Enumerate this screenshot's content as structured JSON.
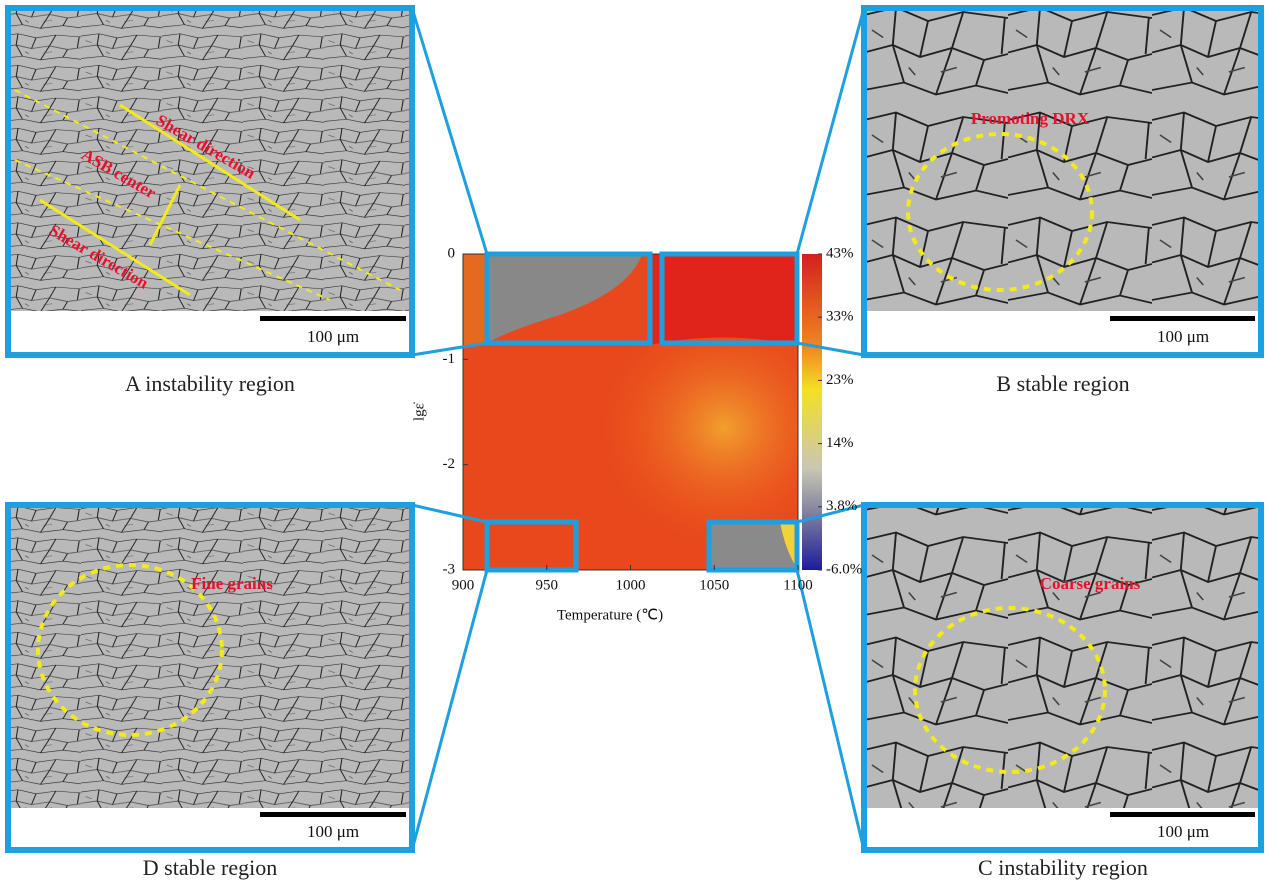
{
  "panels": [
    {
      "caption": "A instability region",
      "scale_label": "100 μm",
      "annotations": [
        "Shear direction",
        "ASB center",
        "Shear direction"
      ]
    },
    {
      "caption": "B stable region",
      "scale_label": "100 μm",
      "annotations": [
        "Promoting DRX"
      ]
    },
    {
      "caption": "D stable region",
      "scale_label": "100 μm",
      "annotations": [
        "Fine grains"
      ]
    },
    {
      "caption": "C instability region",
      "scale_label": "100 μm",
      "annotations": [
        "Coarse grains"
      ]
    }
  ],
  "map": {
    "xlabel": "Temperature (℃)",
    "ylabel": "lgε̇",
    "xlim": [
      900,
      1100
    ],
    "xticks": [
      900,
      950,
      1000,
      1050,
      1100
    ],
    "ylim": [
      -3,
      0
    ],
    "yticks": [
      0,
      -1,
      -2,
      -3
    ],
    "colorbar": {
      "lim": [
        -6,
        43
      ],
      "ticks": [
        {
          "value": 43,
          "label": "43%"
        },
        {
          "value": 33.2,
          "label": "33%"
        },
        {
          "value": 23.4,
          "label": "23%"
        },
        {
          "value": 13.6,
          "label": "14%"
        },
        {
          "value": 3.8,
          "label": "3.8%"
        },
        {
          "value": -6,
          "label": "-6.0%"
        }
      ]
    }
  }
}
